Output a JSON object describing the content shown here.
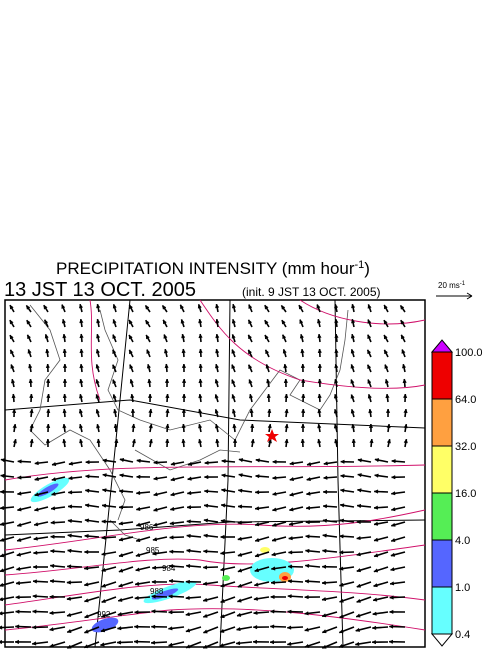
{
  "title": {
    "text": "PRECIPITATION INTENSITY (mm hour",
    "superscript": "-1",
    "close": ")"
  },
  "subtitle": {
    "time": "13 JST 13 OCT. 2005",
    "init": "(init. 9 JST 13 OCT. 2005)"
  },
  "reference_vector": {
    "text": "20 ms",
    "superscript": "-1"
  },
  "legend": {
    "labels": [
      "100.0",
      "64.0",
      "32.0",
      "16.0",
      "4.0",
      "1.0",
      "0.4"
    ],
    "colors": [
      "#ee0000",
      "#ffa040",
      "#ffff66",
      "#55ee55",
      "#5566ff",
      "#66ffff"
    ],
    "top_color": "#cc00ff"
  },
  "isobar_labels": [
    "986",
    "985",
    "984",
    "988",
    "992"
  ]
}
